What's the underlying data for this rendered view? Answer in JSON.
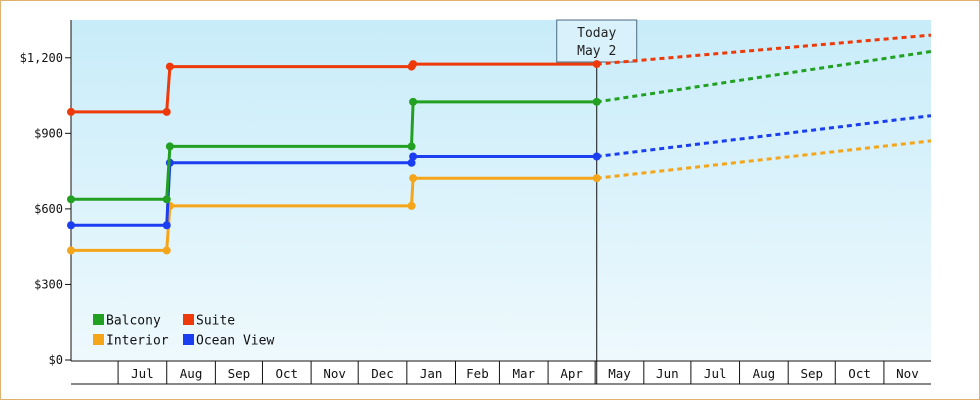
{
  "chart_data": {
    "type": "line",
    "title": "",
    "xlabel": "",
    "ylabel": "",
    "ylim": [
      0,
      1350
    ],
    "y_ticks": [
      {
        "value": 0,
        "label": "$0"
      },
      {
        "value": 300,
        "label": "$300"
      },
      {
        "value": 600,
        "label": "$600"
      },
      {
        "value": 900,
        "label": "$900"
      },
      {
        "value": 1200,
        "label": "$1,200"
      }
    ],
    "x_range": [
      "2021-06-01",
      "2022-12-01"
    ],
    "x_ticks": [
      {
        "label": "Jul",
        "month_start": "2021-07-01"
      },
      {
        "label": "Aug",
        "month_start": "2021-08-01"
      },
      {
        "label": "Sep",
        "month_start": "2021-09-01"
      },
      {
        "label": "Oct",
        "month_start": "2021-10-01"
      },
      {
        "label": "Nov",
        "month_start": "2021-11-01"
      },
      {
        "label": "Dec",
        "month_start": "2021-12-01"
      },
      {
        "label": "Jan",
        "month_start": "2022-01-01"
      },
      {
        "label": "Feb",
        "month_start": "2022-02-01"
      },
      {
        "label": "Mar",
        "month_start": "2022-03-01"
      },
      {
        "label": "Apr",
        "month_start": "2022-04-01"
      },
      {
        "label": "May",
        "month_start": "2022-05-01"
      },
      {
        "label": "Jun",
        "month_start": "2022-06-01"
      },
      {
        "label": "Jul",
        "month_start": "2022-07-01"
      },
      {
        "label": "Aug",
        "month_start": "2022-08-01"
      },
      {
        "label": "Sep",
        "month_start": "2022-09-01"
      },
      {
        "label": "Oct",
        "month_start": "2022-10-01"
      },
      {
        "label": "Nov",
        "month_start": "2022-11-01"
      }
    ],
    "today": {
      "date": "2022-05-02",
      "label_line1": "Today",
      "label_line2": "May 2"
    },
    "grid": false,
    "legend_position": "bottom-left",
    "series": [
      {
        "name": "Balcony",
        "color": "#22a022",
        "points": [
          {
            "x": "2021-06-01",
            "y": 638
          },
          {
            "x": "2021-08-01",
            "y": 638
          },
          {
            "x": "2021-08-03",
            "y": 848
          },
          {
            "x": "2022-01-04",
            "y": 848
          },
          {
            "x": "2022-01-05",
            "y": 1025
          },
          {
            "x": "2022-05-02",
            "y": 1025
          }
        ],
        "forecast": [
          {
            "x": "2022-05-02",
            "y": 1025
          },
          {
            "x": "2022-12-01",
            "y": 1225
          }
        ]
      },
      {
        "name": "Suite",
        "color": "#ee3a0a",
        "points": [
          {
            "x": "2021-06-01",
            "y": 985
          },
          {
            "x": "2021-08-01",
            "y": 985
          },
          {
            "x": "2021-08-03",
            "y": 1165
          },
          {
            "x": "2022-01-04",
            "y": 1165
          },
          {
            "x": "2022-01-05",
            "y": 1175
          },
          {
            "x": "2022-05-02",
            "y": 1175
          }
        ],
        "forecast": [
          {
            "x": "2022-05-02",
            "y": 1175
          },
          {
            "x": "2022-12-01",
            "y": 1290
          }
        ]
      },
      {
        "name": "Interior",
        "color": "#f5a51a",
        "points": [
          {
            "x": "2021-06-01",
            "y": 435
          },
          {
            "x": "2021-08-01",
            "y": 435
          },
          {
            "x": "2021-08-03",
            "y": 612
          },
          {
            "x": "2022-01-04",
            "y": 612
          },
          {
            "x": "2022-01-05",
            "y": 722
          },
          {
            "x": "2022-05-02",
            "y": 722
          }
        ],
        "forecast": [
          {
            "x": "2022-05-02",
            "y": 722
          },
          {
            "x": "2022-12-01",
            "y": 870
          }
        ]
      },
      {
        "name": "Ocean View",
        "color": "#1a3ef0",
        "points": [
          {
            "x": "2021-06-01",
            "y": 535
          },
          {
            "x": "2021-08-01",
            "y": 535
          },
          {
            "x": "2021-08-03",
            "y": 783
          },
          {
            "x": "2022-01-04",
            "y": 783
          },
          {
            "x": "2022-01-05",
            "y": 808
          },
          {
            "x": "2022-05-02",
            "y": 808
          }
        ],
        "forecast": [
          {
            "x": "2022-05-02",
            "y": 808
          },
          {
            "x": "2022-12-01",
            "y": 970
          }
        ]
      }
    ],
    "legend_order": [
      "Balcony",
      "Suite",
      "Interior",
      "Ocean View"
    ]
  }
}
